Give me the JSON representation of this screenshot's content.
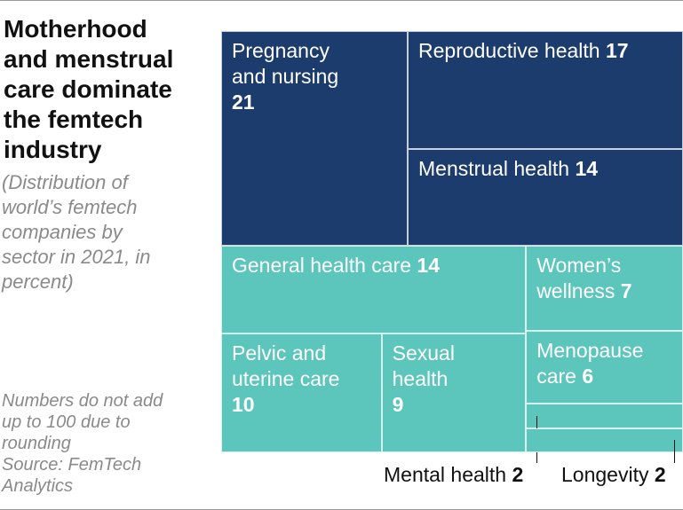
{
  "chart_data": {
    "type": "treemap",
    "title": "Motherhood and menstrual care dominate the femtech industry",
    "subtitle": "(Distribution of world’s femtech companies by sector in 2021, in percent)",
    "note": "Numbers do not add up to 100 due to rounding",
    "source": "Source: FemTech Analytics",
    "categories": [
      "Pregnancy and nursing",
      "Reproductive health",
      "Menstrual health",
      "General health care",
      "Women’s wellness",
      "Menopause care",
      "Mental health",
      "Longevity",
      "Pelvic and uterine care",
      "Sexual health"
    ],
    "values": [
      21,
      17,
      14,
      14,
      7,
      6,
      2,
      2,
      10,
      9
    ],
    "colors": [
      "#1c3c6e",
      "#1c3c6e",
      "#1c3c6e",
      "#5cc5bc",
      "#5cc5bc",
      "#5cc5bc",
      "#5cc5bc",
      "#5cc5bc",
      "#5cc5bc",
      "#5cc5bc"
    ]
  }
}
